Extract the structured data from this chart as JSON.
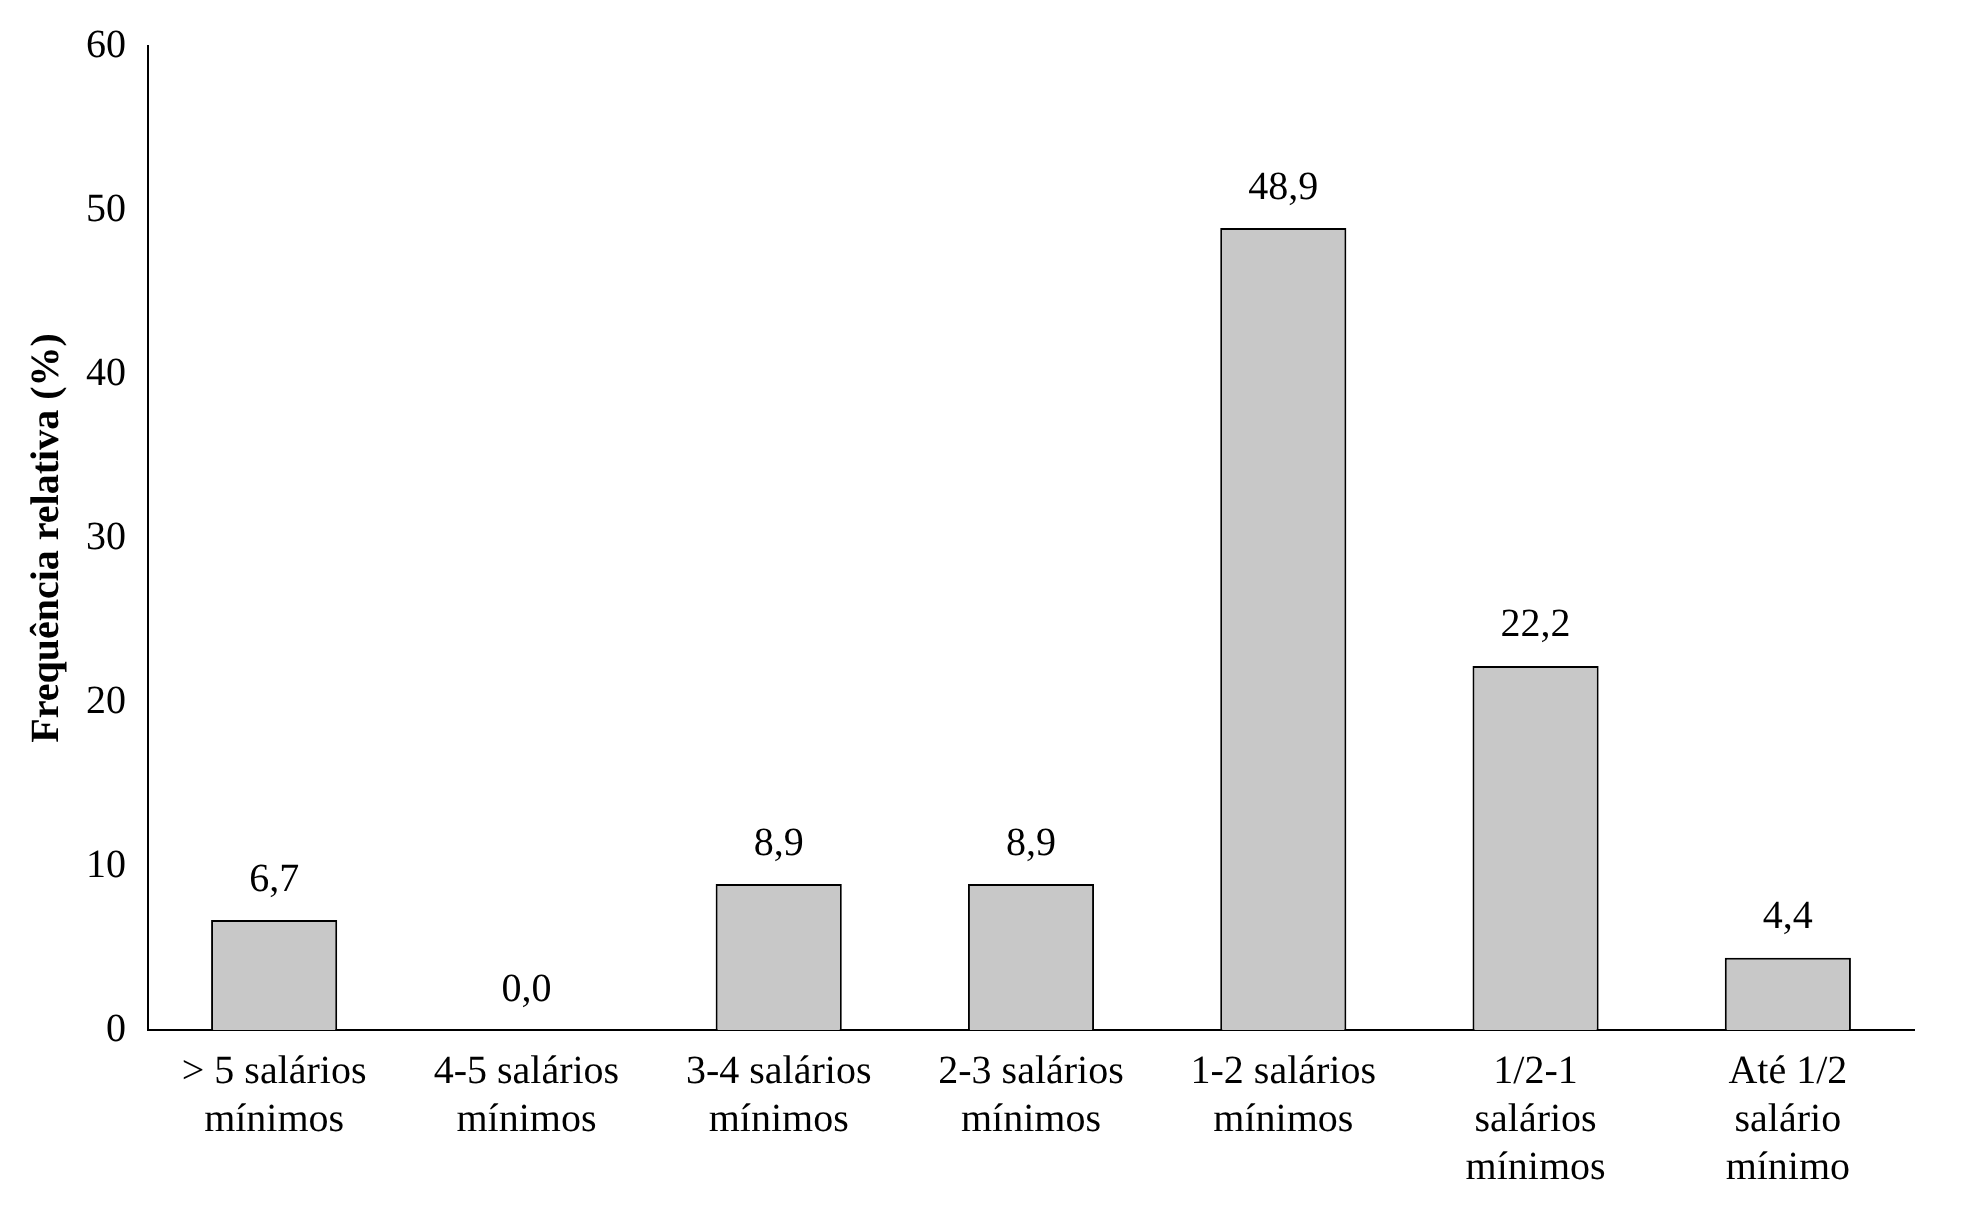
{
  "chart_data": {
    "type": "bar",
    "ylabel": "Frequência relativa (%)",
    "categories": [
      "> 5 salários mínimos",
      "4-5 salários mínimos",
      "3-4 salários mínimos",
      "2-3 salários mínimos",
      "1-2 salários mínimos",
      "1/2-1 salários mínimos",
      "Até 1/2 salário mínimo"
    ],
    "values": [
      6.7,
      0.0,
      8.9,
      8.9,
      48.9,
      22.2,
      4.4
    ],
    "value_labels": [
      "6,7",
      "0,0",
      "8,9",
      "8,9",
      "48,9",
      "22,2",
      "4,4"
    ],
    "color": "#c8c8c8",
    "ylim": [
      0,
      60
    ],
    "yticks": [
      0,
      10,
      20,
      30,
      40,
      50,
      60
    ],
    "grid": false,
    "legend": false
  }
}
